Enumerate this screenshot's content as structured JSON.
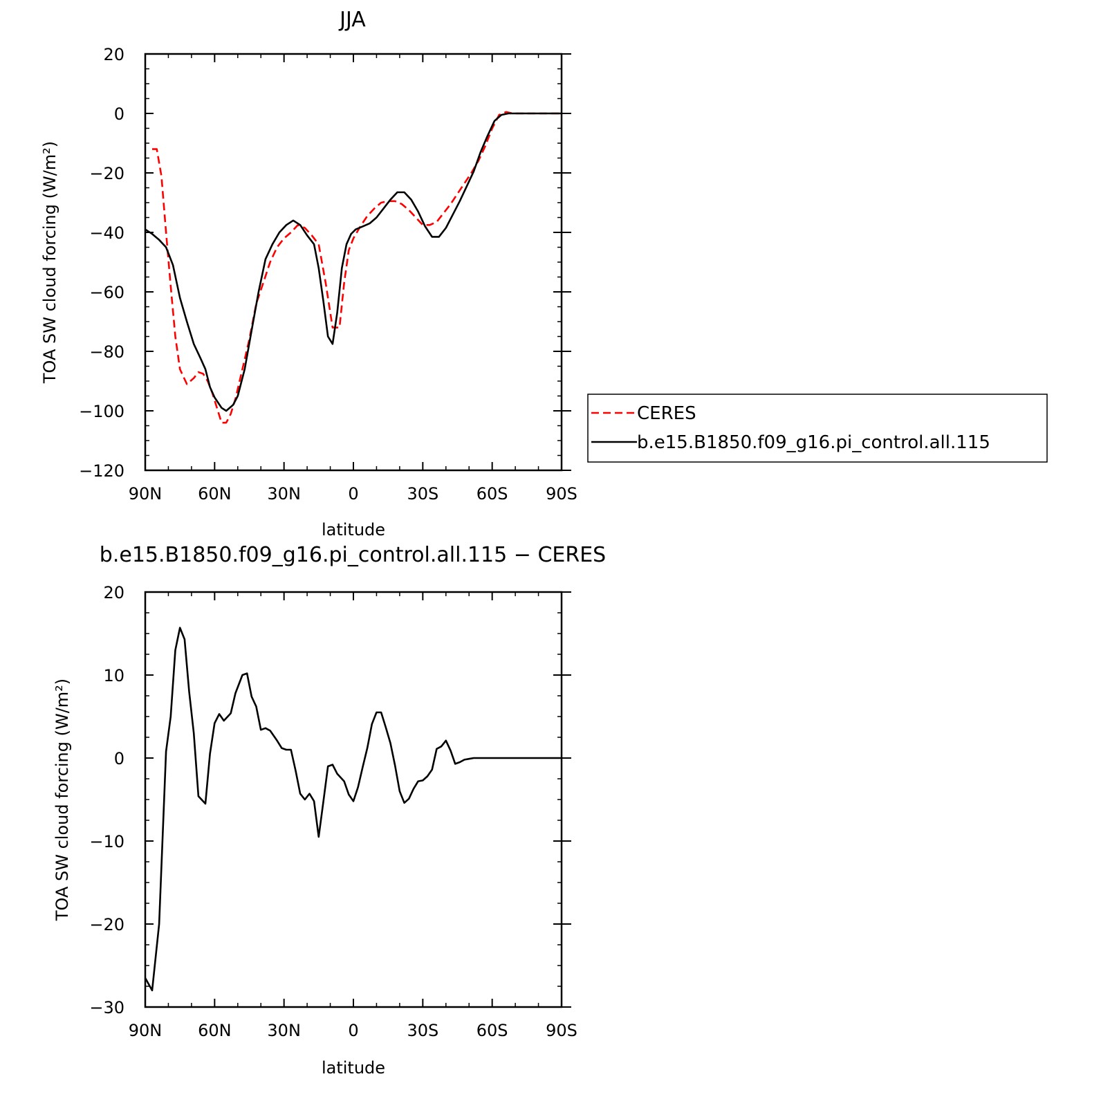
{
  "chart_data": [
    {
      "type": "line",
      "title": "JJA",
      "xlabel": "latitude",
      "ylabel": "TOA SW cloud forcing (W/m²)",
      "xlim": [
        90,
        -90
      ],
      "ylim": [
        -120,
        20
      ],
      "xticks": [
        90,
        60,
        30,
        0,
        -30,
        -60,
        -90
      ],
      "xtick_labels": [
        "90N",
        "60N",
        "30N",
        "0",
        "30S",
        "60S",
        "90S"
      ],
      "yticks": [
        20,
        0,
        -20,
        -40,
        -60,
        -80,
        -100,
        -120
      ],
      "ytick_labels": [
        "20",
        "0",
        "−20",
        "−40",
        "−60",
        "−80",
        "−100",
        "−120"
      ],
      "legend_position": "right",
      "series": [
        {
          "name": "CERES",
          "color": "#ff0000",
          "style": "dashed",
          "x": [
            87,
            85,
            83,
            81,
            79,
            77,
            75,
            72,
            69,
            67,
            65,
            63,
            61,
            59,
            57,
            55,
            53,
            51,
            48,
            45,
            42,
            39,
            36,
            33,
            30,
            27,
            24,
            21,
            18,
            15,
            12,
            9,
            6,
            4,
            2,
            0,
            -3,
            -6,
            -9,
            -12,
            -15,
            -18,
            -21,
            -24,
            -27,
            -30,
            -33,
            -36,
            -39,
            -42,
            -45,
            -48,
            -51,
            -54,
            -57,
            -60,
            -63,
            -66,
            -69,
            -72,
            -75,
            -78,
            -81,
            -84,
            -87,
            -90
          ],
          "y": [
            -12,
            -12,
            -21,
            -40,
            -58,
            -75,
            -86,
            -91,
            -89,
            -87,
            -87.5,
            -90,
            -94,
            -99,
            -104,
            -104,
            -101,
            -96,
            -86,
            -76,
            -64,
            -57,
            -50,
            -45,
            -42,
            -40,
            -37.5,
            -38.5,
            -41,
            -44,
            -57,
            -72,
            -72,
            -57,
            -46,
            -42,
            -38,
            -34.5,
            -32,
            -30,
            -29.5,
            -29.5,
            -30.5,
            -32.5,
            -35,
            -37.5,
            -37.5,
            -36.5,
            -33.5,
            -30.5,
            -27,
            -23.5,
            -20,
            -16,
            -11,
            -5,
            -0.5,
            0.5,
            0,
            0,
            0,
            0,
            0,
            0,
            0,
            0
          ]
        },
        {
          "name": "b.e15.B1850.f09_g16.pi_control.all.115",
          "color": "#000000",
          "style": "solid",
          "x": [
            90,
            87,
            84,
            81,
            78,
            75,
            72,
            69,
            66,
            64,
            62,
            60,
            57,
            55,
            52,
            50,
            47,
            44,
            41,
            38,
            35,
            32,
            29,
            26,
            23,
            20,
            17,
            15,
            13,
            11,
            9,
            7,
            5,
            3,
            1,
            -1,
            -4,
            -7,
            -10,
            -13,
            -16,
            -19,
            -22,
            -25,
            -28,
            -31,
            -34,
            -37,
            -40,
            -43,
            -46,
            -49,
            -52,
            -55,
            -58,
            -61,
            -64,
            -67,
            -70,
            -75,
            -80,
            -85,
            -90
          ],
          "y": [
            -39,
            -40.5,
            -42.5,
            -45,
            -51,
            -62,
            -70,
            -77.5,
            -82.5,
            -86,
            -92,
            -95.5,
            -99,
            -100,
            -98,
            -95,
            -86,
            -73,
            -60,
            -49,
            -44,
            -40,
            -37.5,
            -36,
            -37.5,
            -41,
            -44,
            -52,
            -63,
            -75,
            -77.5,
            -67,
            -52,
            -44,
            -40.5,
            -39,
            -38,
            -37,
            -35,
            -32,
            -29,
            -26.5,
            -26.5,
            -29,
            -33,
            -38,
            -41.5,
            -41.5,
            -38.5,
            -34,
            -29.5,
            -24.5,
            -19.5,
            -13,
            -7.5,
            -2.5,
            -0.5,
            0,
            0,
            0,
            0,
            0,
            0
          ]
        }
      ]
    },
    {
      "type": "line",
      "title": "b.e15.B1850.f09_g16.pi_control.all.115 − CERES",
      "xlabel": "latitude",
      "ylabel": "TOA SW cloud forcing (W/m²)",
      "xlim": [
        90,
        -90
      ],
      "ylim": [
        -30,
        20
      ],
      "xticks": [
        90,
        60,
        30,
        0,
        -30,
        -60,
        -90
      ],
      "xtick_labels": [
        "90N",
        "60N",
        "30N",
        "0",
        "30S",
        "60S",
        "90S"
      ],
      "yticks": [
        20,
        10,
        0,
        -10,
        -20,
        -30
      ],
      "ytick_labels": [
        "20",
        "10",
        "0",
        "−10",
        "−20",
        "−30"
      ],
      "series": [
        {
          "color": "#000000",
          "style": "solid",
          "x": [
            90,
            87,
            84,
            81,
            79,
            77,
            75,
            73,
            71,
            69,
            67,
            64,
            62,
            60,
            58,
            56,
            53,
            51,
            48,
            46,
            44,
            42,
            40,
            38,
            36,
            33,
            31,
            29,
            27,
            25,
            23,
            21,
            19,
            17,
            15,
            13,
            11,
            9,
            7,
            4,
            2,
            0,
            -2,
            -4,
            -6,
            -8,
            -10,
            -12,
            -14,
            -16,
            -18,
            -20,
            -22,
            -24,
            -26,
            -28,
            -30,
            -32,
            -34,
            -36,
            -38,
            -40,
            -42,
            -44,
            -46,
            -48,
            -50,
            -52,
            -54,
            -56,
            -58,
            -60,
            -62,
            -64,
            -66,
            -68,
            -70,
            -72,
            -74,
            -76,
            -78,
            -80,
            -85,
            -90
          ],
          "y": [
            -26.5,
            -28,
            -20,
            0.8,
            5,
            13,
            15.7,
            14.3,
            8,
            3,
            -4.6,
            -5.5,
            0.5,
            4.2,
            5.3,
            4.5,
            5.4,
            7.8,
            10,
            10.2,
            7.4,
            6.2,
            3.4,
            3.6,
            3.3,
            2.1,
            1.2,
            1.0,
            1.0,
            -1.5,
            -4.3,
            -5.0,
            -4.3,
            -5.2,
            -9.5,
            -5.3,
            -1.0,
            -0.8,
            -1.9,
            -2.8,
            -4.4,
            -5.2,
            -3.5,
            -1.1,
            1.2,
            4.1,
            5.5,
            5.5,
            3.7,
            1.8,
            -0.9,
            -4.0,
            -5.4,
            -4.9,
            -3.7,
            -2.8,
            -2.7,
            -2.2,
            -1.4,
            1.1,
            1.4,
            2.1,
            0.9,
            -0.7,
            -0.5,
            -0.2,
            -0.1,
            0.0,
            0.0,
            0.0,
            0.0,
            0.0,
            0.0,
            0.0,
            0.0,
            0.0,
            0.0,
            0.0,
            0.0,
            0.0,
            0.0,
            0.0,
            0.0,
            0.0
          ]
        }
      ]
    }
  ]
}
